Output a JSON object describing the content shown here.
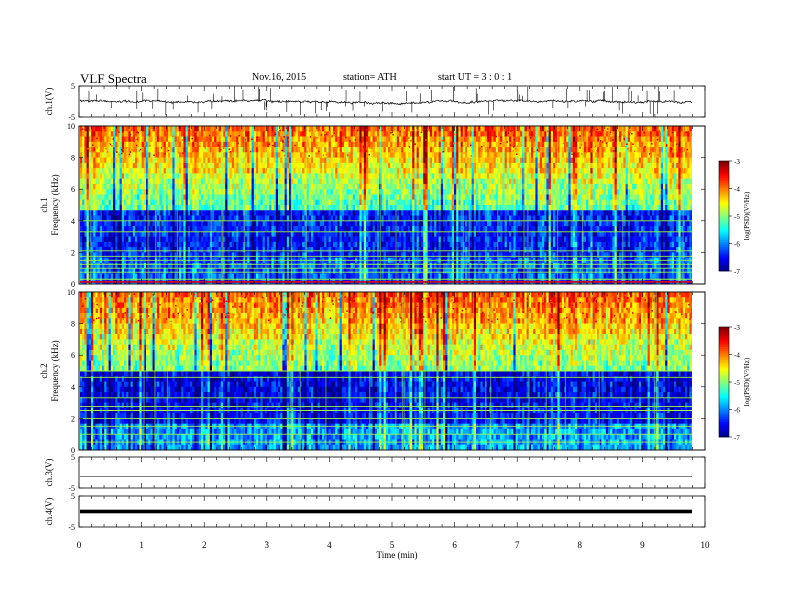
{
  "header": {
    "title": "VLF  Spectra",
    "date": "Nov.16, 2015",
    "station": "station= ATH",
    "start": "start  UT  =   3  : 0  : 1"
  },
  "chart_data": {
    "type": "heatmap",
    "xaxis": {
      "label": "Time  (min)",
      "range": [
        0,
        10
      ],
      "ticks": [
        "0",
        "1",
        "2",
        "3",
        "4",
        "5",
        "6",
        "7",
        "8",
        "9",
        "10"
      ]
    },
    "panels": [
      {
        "name": "ch1-waveform",
        "type": "line",
        "ylabel": "ch.1(V)",
        "yticks": [
          "5",
          "-5"
        ],
        "ylim": [
          -5,
          5
        ]
      },
      {
        "name": "ch1-spectrogram",
        "type": "heatmap",
        "ylabel": "Frequency  (kHz)",
        "ylabel2": "ch.1",
        "ylim": [
          0,
          10
        ],
        "yticks": [
          "0",
          "2",
          "4",
          "6",
          "8",
          "10"
        ],
        "colorbar": {
          "label": "log(PSD)(V²/Hz)",
          "range": [
            -7,
            -3
          ],
          "ticks": [
            "-3",
            "-4",
            "-5",
            "-6",
            "-7"
          ]
        }
      },
      {
        "name": "ch2-spectrogram",
        "type": "heatmap",
        "ylabel": "Frequency  (kHz)",
        "ylabel2": "ch.2",
        "ylim": [
          0,
          10
        ],
        "yticks": [
          "0",
          "2",
          "4",
          "6",
          "8",
          "10"
        ],
        "colorbar": {
          "label": "log(PSD)(V²/Hz)",
          "range": [
            -7,
            -3
          ],
          "ticks": [
            "-3",
            "-4",
            "-5",
            "-6",
            "-7"
          ]
        }
      },
      {
        "name": "ch3-waveform",
        "type": "line",
        "ylabel": "ch.3(V)",
        "yticks": [
          "5",
          "-5"
        ],
        "ylim": [
          -5,
          5
        ]
      },
      {
        "name": "ch4-waveform",
        "type": "line",
        "ylabel": "ch.4(V)",
        "yticks": [
          "5",
          "-5"
        ],
        "ylim": [
          -5,
          5
        ]
      }
    ]
  }
}
